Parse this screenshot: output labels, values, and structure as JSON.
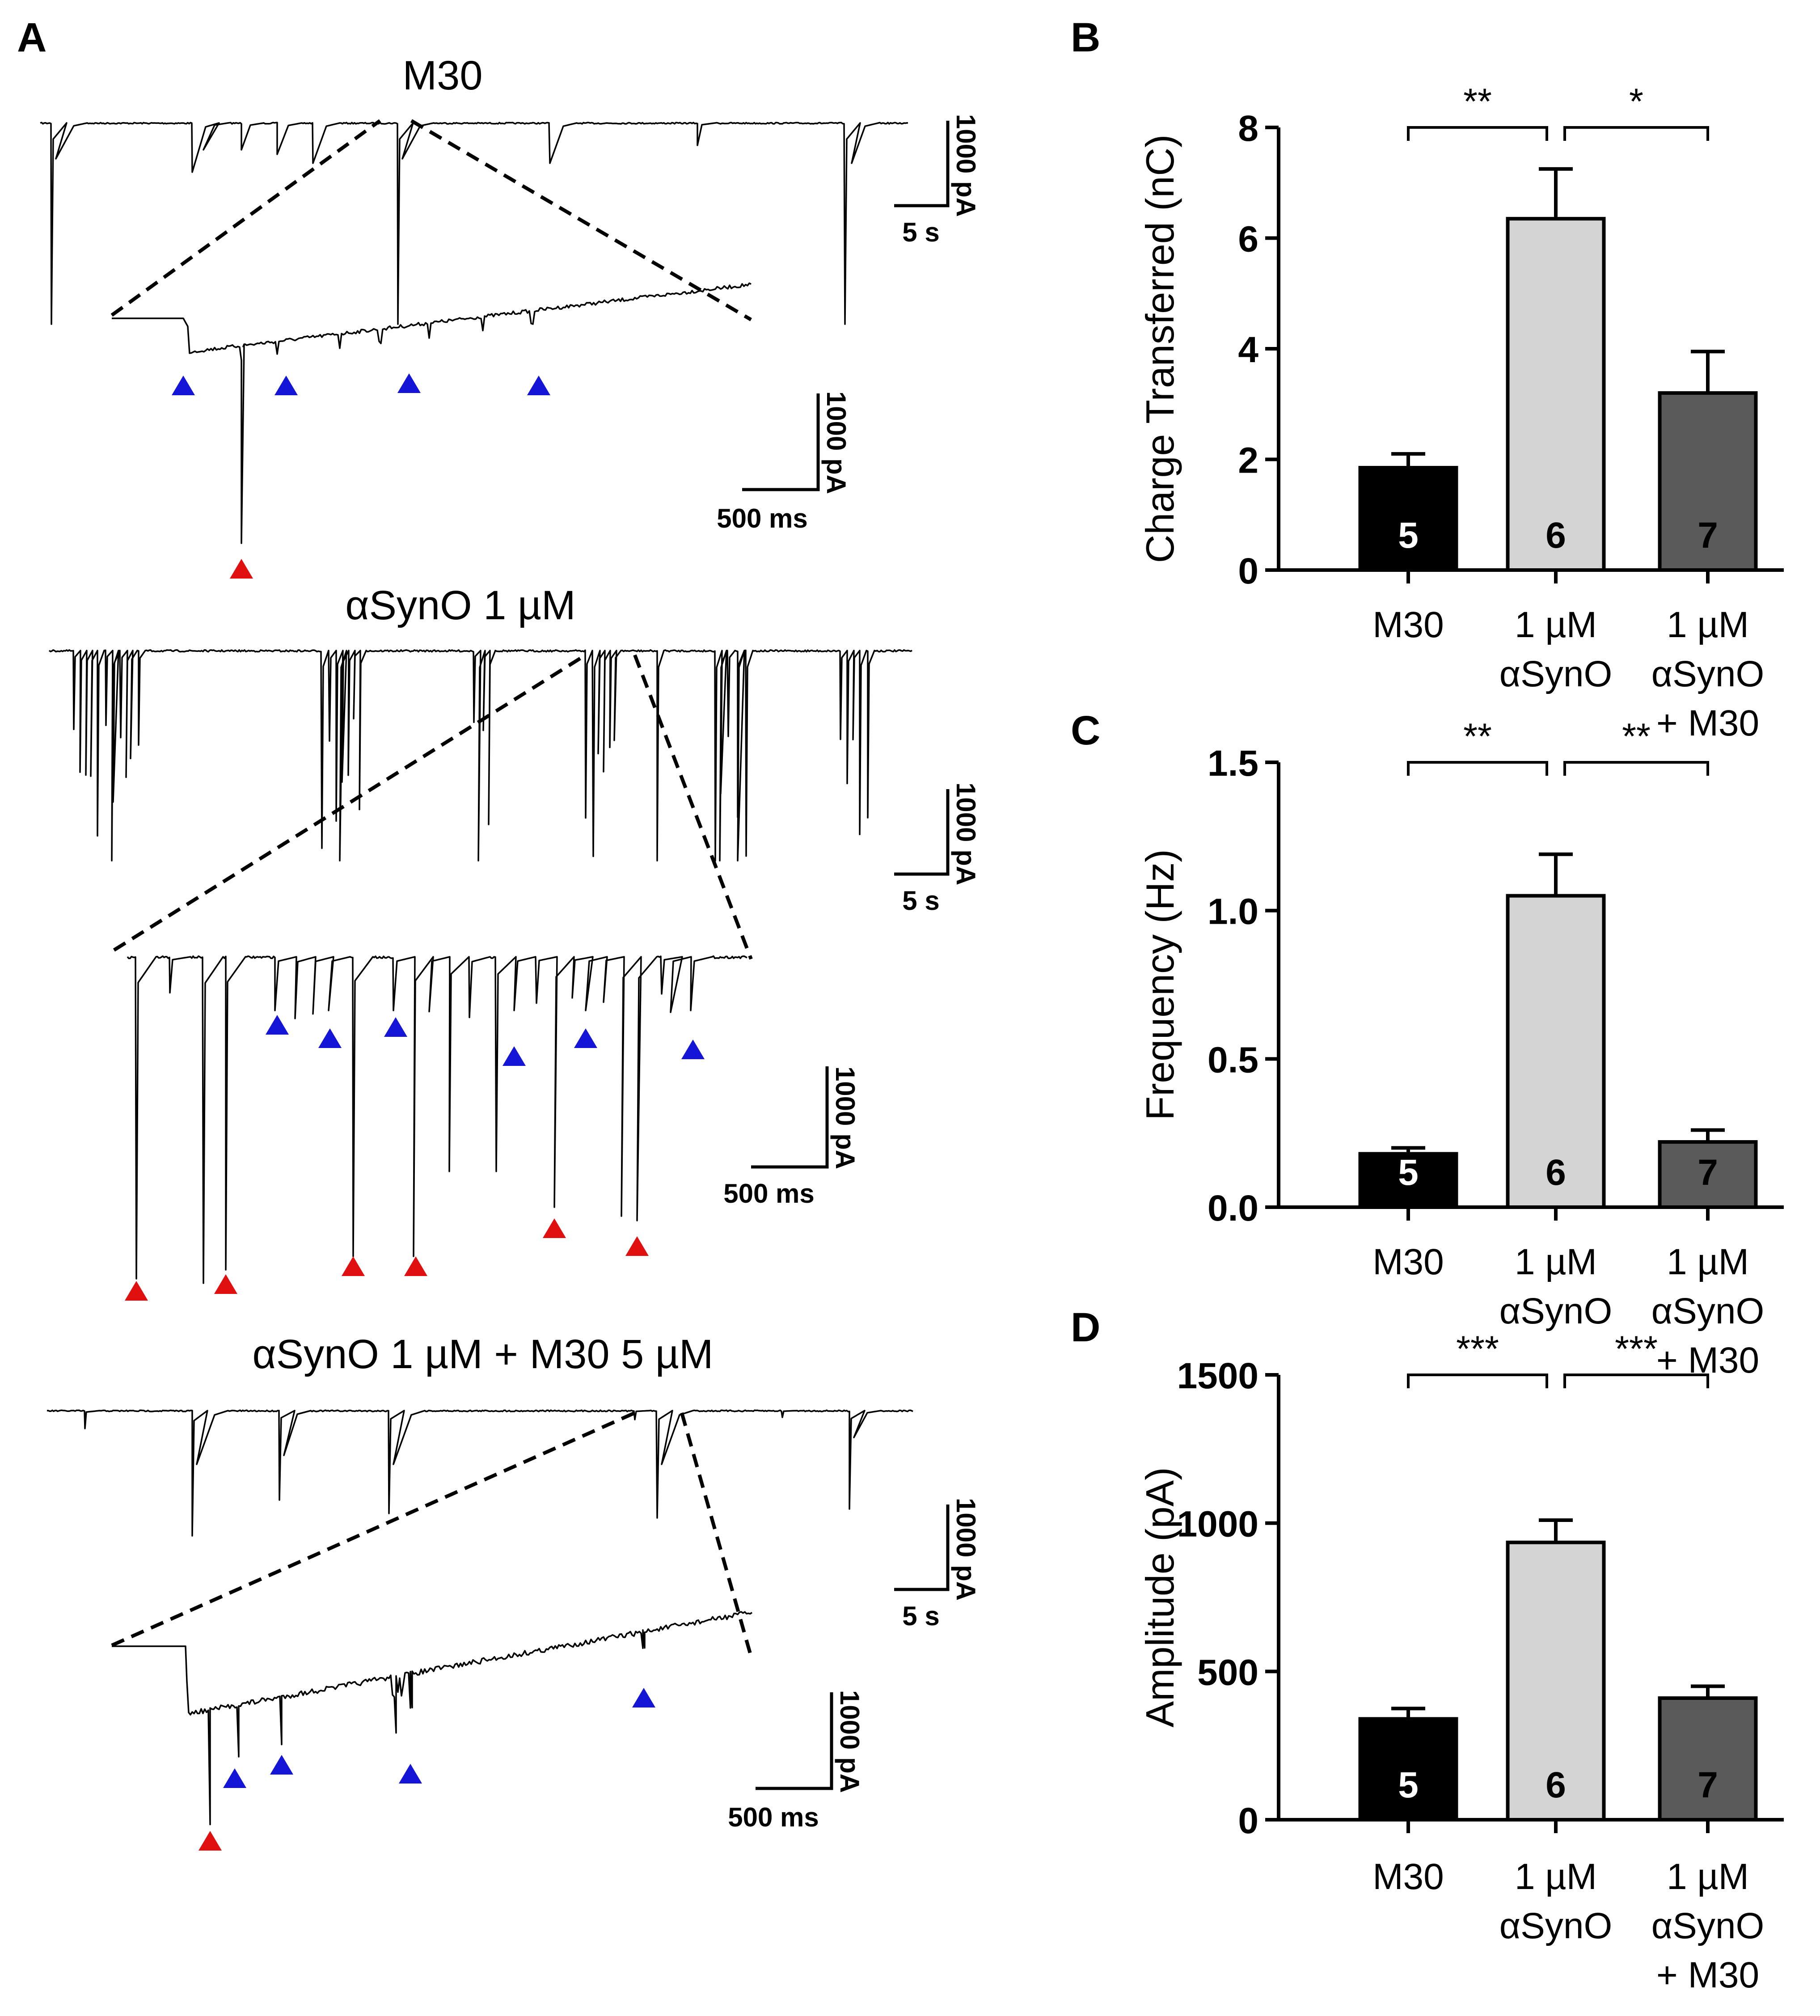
{
  "panel_labels": {
    "a": "A",
    "b": "B",
    "c": "C",
    "d": "D"
  },
  "traces": {
    "titles": [
      "M30",
      "αSynO 1 µM",
      "αSynO 1 µM + M30 5 µM"
    ],
    "scale_long": {
      "time": "5 s",
      "current": "1000 pA"
    },
    "scale_short": {
      "time": "500 ms",
      "current": "1000 pA"
    },
    "marker_colors": {
      "blue": "#1515d8",
      "red": "#e01010"
    }
  },
  "colors": {
    "bar_m30": "#000000",
    "bar_asyno": "#d4d4d4",
    "bar_combo": "#5a5a5a"
  },
  "categories": [
    [
      "M30"
    ],
    [
      "1 µM",
      "αSynO"
    ],
    [
      "1 µM",
      "αSynO",
      "+ M30"
    ]
  ],
  "chart_data": [
    {
      "type": "bar",
      "ylabel": "Charge Transferred (nC)",
      "ylim": [
        0,
        8
      ],
      "ticks": [
        0,
        2,
        4,
        6,
        8
      ],
      "tick_labels": [
        "0",
        "2",
        "4",
        "6",
        "8"
      ],
      "categories": [
        "M30",
        "1 µM αSynO",
        "1 µM αSynO + M30"
      ],
      "values": [
        1.85,
        6.35,
        3.2
      ],
      "errors": [
        0.25,
        0.9,
        0.75
      ],
      "n_labels": [
        "5",
        "6",
        "7"
      ],
      "significance": [
        "**",
        "*"
      ]
    },
    {
      "type": "bar",
      "ylabel": "Frequency (Hz)",
      "ylim": [
        0,
        1.5
      ],
      "ticks": [
        0,
        0.5,
        1.0,
        1.5
      ],
      "tick_labels": [
        "0.0",
        "0.5",
        "1.0",
        "1.5"
      ],
      "categories": [
        "M30",
        "1 µM αSynO",
        "1 µM αSynO + M30"
      ],
      "values": [
        0.18,
        1.05,
        0.22
      ],
      "errors": [
        0.02,
        0.14,
        0.04
      ],
      "n_labels": [
        "5",
        "6",
        "7"
      ],
      "significance": [
        "**",
        "**"
      ]
    },
    {
      "type": "bar",
      "ylabel": "Amplitude (pA)",
      "ylim": [
        0,
        1500
      ],
      "ticks": [
        0,
        500,
        1000,
        1500
      ],
      "tick_labels": [
        "0",
        "500",
        "1000",
        "1500"
      ],
      "categories": [
        "M30",
        "1 µM αSynO",
        "1 µM αSynO + M30"
      ],
      "values": [
        340,
        935,
        410
      ],
      "errors": [
        35,
        75,
        40
      ],
      "n_labels": [
        "5",
        "6",
        "7"
      ],
      "significance": [
        "***",
        "***"
      ]
    }
  ]
}
